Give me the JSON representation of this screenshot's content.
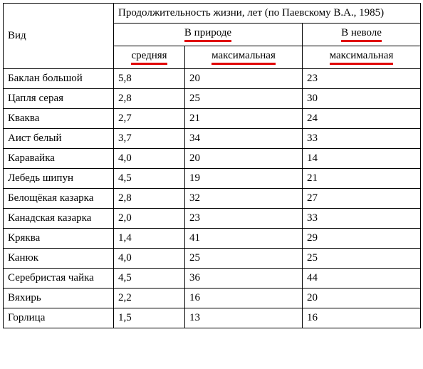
{
  "header": {
    "rowLabel": "Вид",
    "group": "Продолжительность жизни, лет (по Паевскому В.А., 1985)",
    "natureGroup": "В природе",
    "captivityGroup": "В неволе",
    "natureAvg": "средняя",
    "natureMax": "максимальная",
    "captivityMax": "максимальная"
  },
  "style": {
    "underlineColor": "#e00000",
    "borderColor": "#000000",
    "background": "#ffffff",
    "fontFamily": "Times New Roman",
    "fontSizePx": 15
  },
  "columns": {
    "widthsPx": [
      155,
      100,
      165,
      166
    ],
    "count": 4
  },
  "rows": [
    {
      "species": "Баклан большой",
      "natureAvg": "5,8",
      "natureMax": "20",
      "captivityMax": "23"
    },
    {
      "species": "Цапля серая",
      "natureAvg": "2,8",
      "natureMax": "25",
      "captivityMax": "30"
    },
    {
      "species": "Кваква",
      "natureAvg": "2,7",
      "natureMax": "21",
      "captivityMax": "24"
    },
    {
      "species": "Аист белый",
      "natureAvg": "3,7",
      "natureMax": "34",
      "captivityMax": "33"
    },
    {
      "species": "Каравайка",
      "natureAvg": "4,0",
      "natureMax": "20",
      "captivityMax": "14"
    },
    {
      "species": "Лебедь шипун",
      "natureAvg": "4,5",
      "natureMax": "19",
      "captivityMax": "21"
    },
    {
      "species": "Белощёкая казарка",
      "natureAvg": "2,8",
      "natureMax": "32",
      "captivityMax": "27"
    },
    {
      "species": "Канадская казарка",
      "natureAvg": "2,0",
      "natureMax": "23",
      "captivityMax": "33"
    },
    {
      "species": "Кряква",
      "natureAvg": "1,4",
      "natureMax": "41",
      "captivityMax": "29"
    },
    {
      "species": "Канюк",
      "natureAvg": "4,0",
      "natureMax": "25",
      "captivityMax": "25"
    },
    {
      "species": "Серебристая чайка",
      "natureAvg": "4,5",
      "natureMax": "36",
      "captivityMax": "44"
    },
    {
      "species": "Вяхирь",
      "natureAvg": "2,2",
      "natureMax": "16",
      "captivityMax": "20"
    },
    {
      "species": "Горлица",
      "natureAvg": "1,5",
      "natureMax": "13",
      "captivityMax": "16"
    }
  ]
}
